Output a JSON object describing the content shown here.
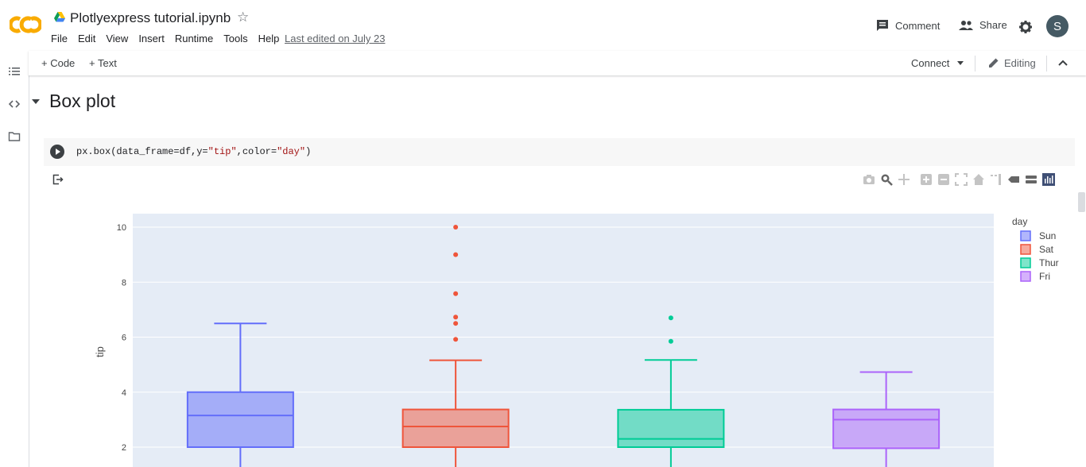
{
  "header": {
    "doc_title": "Plotlyexpress tutorial.ipynb",
    "menu": [
      "File",
      "Edit",
      "View",
      "Insert",
      "Runtime",
      "Tools",
      "Help"
    ],
    "last_edited": "Last edited on July 23",
    "comment_label": "Comment",
    "share_label": "Share",
    "avatar_letter": "S"
  },
  "toolbar": {
    "code_label": "+ Code",
    "text_label": "+ Text",
    "connect_label": "Connect",
    "editing_label": "Editing"
  },
  "section": {
    "title": "Box plot"
  },
  "cell": {
    "code_prefix": "px.box(data_frame=df,y=",
    "code_str1": "\"tip\"",
    "code_mid": ",color=",
    "code_str2": "\"day\"",
    "code_suffix": ")"
  },
  "colors": {
    "Sun": "#636efa",
    "Sat": "#ef553b",
    "Thur": "#00cc96",
    "Fri": "#ab63fa",
    "plot_bg": "#e5ecf6"
  },
  "chart_data": {
    "type": "box",
    "ylabel": "tip",
    "legend_title": "day",
    "legend_position": "top-right",
    "y_ticks": [
      2,
      4,
      6,
      8,
      10
    ],
    "ylim": [
      1.6,
      10.5
    ],
    "series": [
      {
        "name": "Sun",
        "q1": 2.0,
        "median": 3.15,
        "q3": 4.0,
        "upper_fence": 6.5,
        "outliers": []
      },
      {
        "name": "Sat",
        "q1": 2.0,
        "median": 2.75,
        "q3": 3.37,
        "upper_fence": 5.16,
        "outliers": [
          5.92,
          6.5,
          6.73,
          7.58,
          9.0,
          10.0
        ]
      },
      {
        "name": "Thur",
        "q1": 2.0,
        "median": 2.3,
        "q3": 3.36,
        "upper_fence": 5.17,
        "outliers": [
          5.85,
          6.7
        ]
      },
      {
        "name": "Fri",
        "q1": 1.96,
        "median": 3.0,
        "q3": 3.37,
        "upper_fence": 4.73,
        "outliers": []
      }
    ]
  }
}
